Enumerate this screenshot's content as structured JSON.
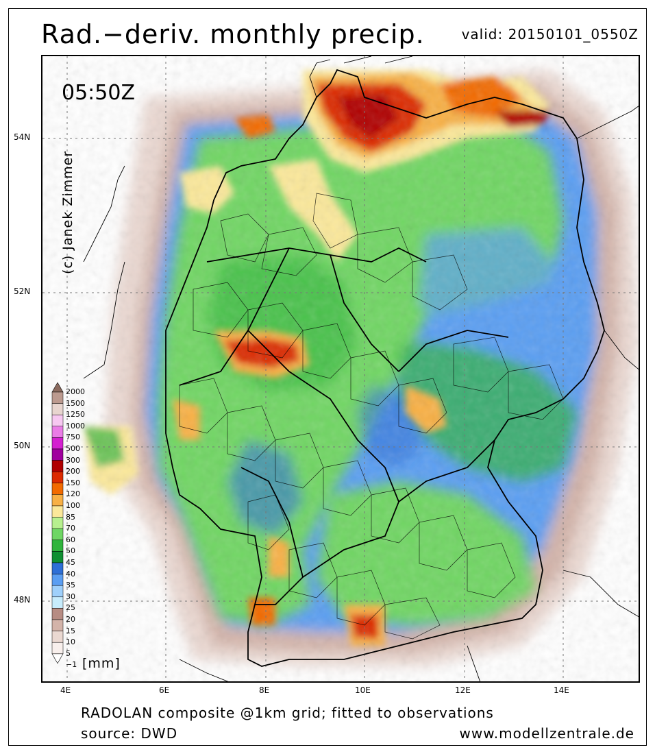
{
  "title": "Rad.−deriv. monthly precip.",
  "valid": "valid: 20150101_0550Z",
  "time_label": "05:50Z",
  "credit": "(c) Janek Zimmer",
  "lat_labels": [
    "54N",
    "52N",
    "50N",
    "48N"
  ],
  "lon_labels": [
    "4E",
    "6E",
    "8E",
    "10E",
    "12E",
    "14E"
  ],
  "footer": {
    "line1": "RADOLAN composite @1km grid; fitted to observations",
    "line2": "source: DWD",
    "website": "www.modellzentrale.de"
  },
  "legend": {
    "unit": "[mm]",
    "levels": [
      {
        "label": "2000",
        "color": "#8b6a5e"
      },
      {
        "label": "1500",
        "color": "#bc9a8f"
      },
      {
        "label": "1250",
        "color": "#e8d5cf"
      },
      {
        "label": "1000",
        "color": "#f7c8f1"
      },
      {
        "label": "750",
        "color": "#ea7ce6"
      },
      {
        "label": "500",
        "color": "#d41fd0"
      },
      {
        "label": "300",
        "color": "#a0009e"
      },
      {
        "label": "200",
        "color": "#b00000"
      },
      {
        "label": "150",
        "color": "#dc2a00"
      },
      {
        "label": "120",
        "color": "#f26a00"
      },
      {
        "label": "100",
        "color": "#f8b045"
      },
      {
        "label": "85",
        "color": "#fbe89a"
      },
      {
        "label": "70",
        "color": "#b7f08f"
      },
      {
        "label": "60",
        "color": "#6fd664"
      },
      {
        "label": "50",
        "color": "#2fb43c"
      },
      {
        "label": "45",
        "color": "#0f8f32"
      },
      {
        "label": "40",
        "color": "#2e6fd6"
      },
      {
        "label": "35",
        "color": "#5a9ef2"
      },
      {
        "label": "30",
        "color": "#9fd0fb"
      },
      {
        "label": "25",
        "color": "#c7ecfc"
      },
      {
        "label": "20",
        "color": "#b78c83"
      },
      {
        "label": "15",
        "color": "#d3b3a9"
      },
      {
        "label": "10",
        "color": "#ead8d1"
      },
      {
        "label": "5",
        "color": "#f8efec"
      },
      {
        "label": "−1",
        "color": "#ffffff"
      }
    ]
  }
}
